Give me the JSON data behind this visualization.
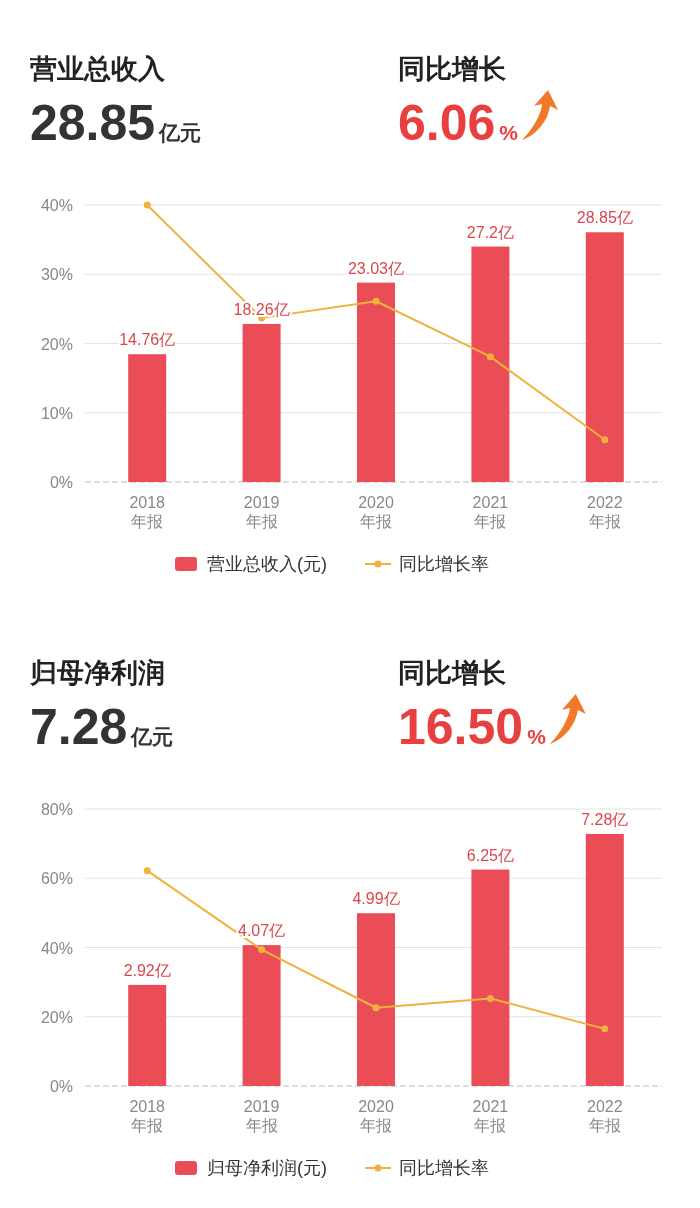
{
  "chart_data": [
    {
      "type": "bar",
      "title": "营业总收入",
      "subtitle": "28.85亿元",
      "annotations": [
        "同比增长",
        "6.06%"
      ],
      "categories": [
        "2018 年报",
        "2019 年报",
        "2020 年报",
        "2021 年报",
        "2022 年报"
      ],
      "series": [
        {
          "name": "营业总收入(元)",
          "axis": "y2",
          "color": "#ea4d56",
          "values": [
            14.76,
            18.26,
            23.03,
            27.2,
            28.85
          ],
          "value_labels": [
            "14.76亿",
            "18.26亿",
            "23.03亿",
            "27.2亿",
            "28.85亿"
          ]
        },
        {
          "name": "同比增长率",
          "type": "line",
          "color": "#f0b23e",
          "marker": "circle",
          "values": [
            40,
            23.7,
            26.1,
            18.1,
            6.1
          ]
        }
      ],
      "ylim": [
        0,
        40
      ],
      "yticks": [
        {
          "value": 0,
          "label": "0%"
        },
        {
          "value": 10,
          "label": "10%"
        },
        {
          "value": 20,
          "label": "20%"
        },
        {
          "value": 30,
          "label": "30%"
        },
        {
          "value": 40,
          "label": "40%"
        }
      ],
      "y2lim": [
        0,
        32
      ],
      "grid": "y",
      "legend": "bottom"
    },
    {
      "type": "bar",
      "title": "归母净利润",
      "subtitle": "7.28亿元",
      "annotations": [
        "同比增长",
        "16.50%"
      ],
      "categories": [
        "2018 年报",
        "2019 年报",
        "2020 年报",
        "2021 年报",
        "2022 年报"
      ],
      "series": [
        {
          "name": "归母净利润(元)",
          "axis": "y2",
          "color": "#ea4d56",
          "values": [
            2.92,
            4.07,
            4.99,
            6.25,
            7.28
          ],
          "value_labels": [
            "2.92亿",
            "4.07亿",
            "4.99亿",
            "6.25亿",
            "7.28亿"
          ]
        },
        {
          "name": "同比增长率",
          "type": "line",
          "color": "#f0b23e",
          "marker": "circle",
          "values": [
            62.2,
            39.4,
            22.6,
            25.3,
            16.5
          ]
        }
      ],
      "ylim": [
        0,
        80
      ],
      "yticks": [
        {
          "value": 0,
          "label": "0%"
        },
        {
          "value": 20,
          "label": "20%"
        },
        {
          "value": 40,
          "label": "40%"
        },
        {
          "value": 60,
          "label": "60%"
        },
        {
          "value": 80,
          "label": "80%"
        }
      ],
      "y2lim": [
        0,
        8
      ],
      "grid": "y",
      "legend": "bottom"
    }
  ]
}
